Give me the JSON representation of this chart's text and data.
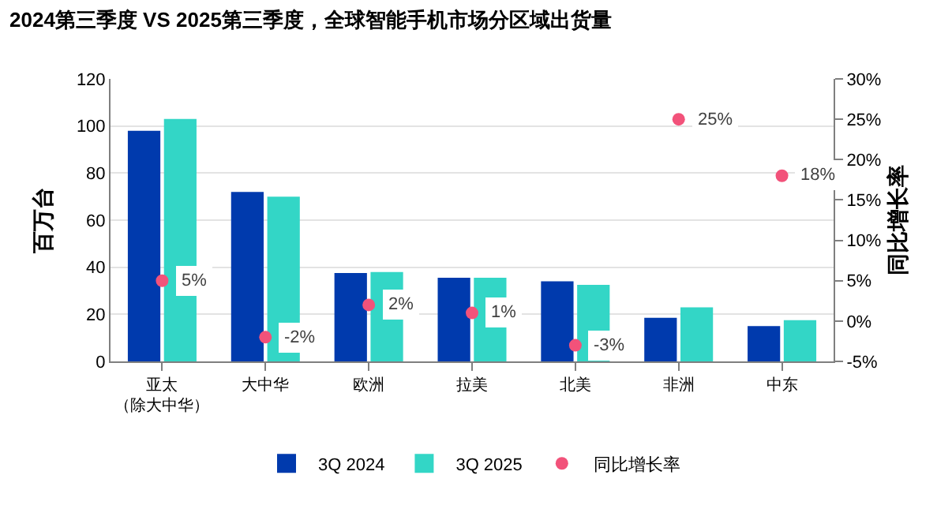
{
  "chart_data": {
    "type": "bar",
    "title": "2024第三季度 VS 2025第三季度，全球智能手机市场分区域出货量",
    "categories": [
      "亚太（除大中华）",
      "大中华",
      "欧洲",
      "拉美",
      "北美",
      "非洲",
      "中东"
    ],
    "series": [
      {
        "name": "3Q 2024",
        "color": "#003aad",
        "values": [
          98,
          72,
          37.5,
          35.5,
          34,
          18.5,
          15
        ]
      },
      {
        "name": "3Q 2025",
        "color": "#33d6c6",
        "values": [
          103,
          70,
          38,
          35.5,
          32.5,
          23,
          17.5
        ]
      },
      {
        "name": "同比增长率",
        "type": "scatter",
        "axis": "y2",
        "color": "#f2527a",
        "marker": "circle",
        "values": [
          5,
          -2,
          2,
          1,
          -3,
          25,
          18
        ],
        "value_labels": [
          "5%",
          "-2%",
          "2%",
          "1%",
          "-3%",
          "25%",
          "18%"
        ]
      }
    ],
    "ylabel": "百万台",
    "y2label": "同比增长率",
    "ylim": [
      0,
      120
    ],
    "yticks": [
      0,
      20,
      40,
      60,
      80,
      100,
      120
    ],
    "y2lim": [
      -5,
      30
    ],
    "y2ticks": [
      {
        "value": -5,
        "label": "-5%"
      },
      {
        "value": 0,
        "label": "0%"
      },
      {
        "value": 5,
        "label": "5%"
      },
      {
        "value": 10,
        "label": "10%"
      },
      {
        "value": 15,
        "label": "15%"
      },
      {
        "value": 20,
        "label": "20%"
      },
      {
        "value": 25,
        "label": "25%"
      },
      {
        "value": 30,
        "label": "30%"
      }
    ],
    "grid": "y",
    "legend": "bottom"
  }
}
